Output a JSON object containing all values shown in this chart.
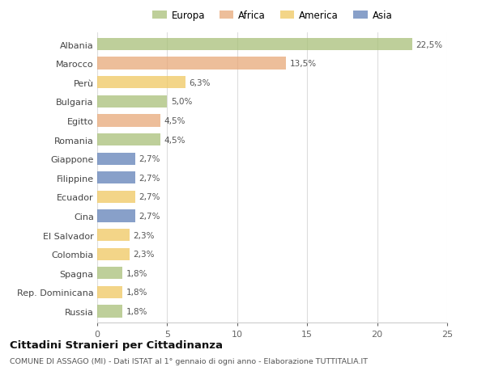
{
  "categories": [
    "Albania",
    "Marocco",
    "Perù",
    "Bulgaria",
    "Egitto",
    "Romania",
    "Giappone",
    "Filippine",
    "Ecuador",
    "Cina",
    "El Salvador",
    "Colombia",
    "Spagna",
    "Rep. Dominicana",
    "Russia"
  ],
  "values": [
    22.5,
    13.5,
    6.3,
    5.0,
    4.5,
    4.5,
    2.7,
    2.7,
    2.7,
    2.7,
    2.3,
    2.3,
    1.8,
    1.8,
    1.8
  ],
  "labels": [
    "22,5%",
    "13,5%",
    "6,3%",
    "5,0%",
    "4,5%",
    "4,5%",
    "2,7%",
    "2,7%",
    "2,7%",
    "2,7%",
    "2,3%",
    "2,3%",
    "1,8%",
    "1,8%",
    "1,8%"
  ],
  "colors": [
    "#a8c078",
    "#e8a878",
    "#f0c860",
    "#a8c078",
    "#e8a878",
    "#a8c078",
    "#6080b8",
    "#6080b8",
    "#f0c860",
    "#6080b8",
    "#f0c860",
    "#f0c860",
    "#a8c078",
    "#f0c860",
    "#a8c078"
  ],
  "legend_labels": [
    "Europa",
    "Africa",
    "America",
    "Asia"
  ],
  "legend_colors": [
    "#a8c078",
    "#e8a878",
    "#f0c860",
    "#6080b8"
  ],
  "title": "Cittadini Stranieri per Cittadinanza",
  "subtitle": "COMUNE DI ASSAGO (MI) - Dati ISTAT al 1° gennaio di ogni anno - Elaborazione TUTTITALIA.IT",
  "xlim": [
    0,
    25
  ],
  "xticks": [
    0,
    5,
    10,
    15,
    20,
    25
  ],
  "background_color": "#ffffff",
  "bar_alpha": 0.75,
  "bar_height": 0.65
}
